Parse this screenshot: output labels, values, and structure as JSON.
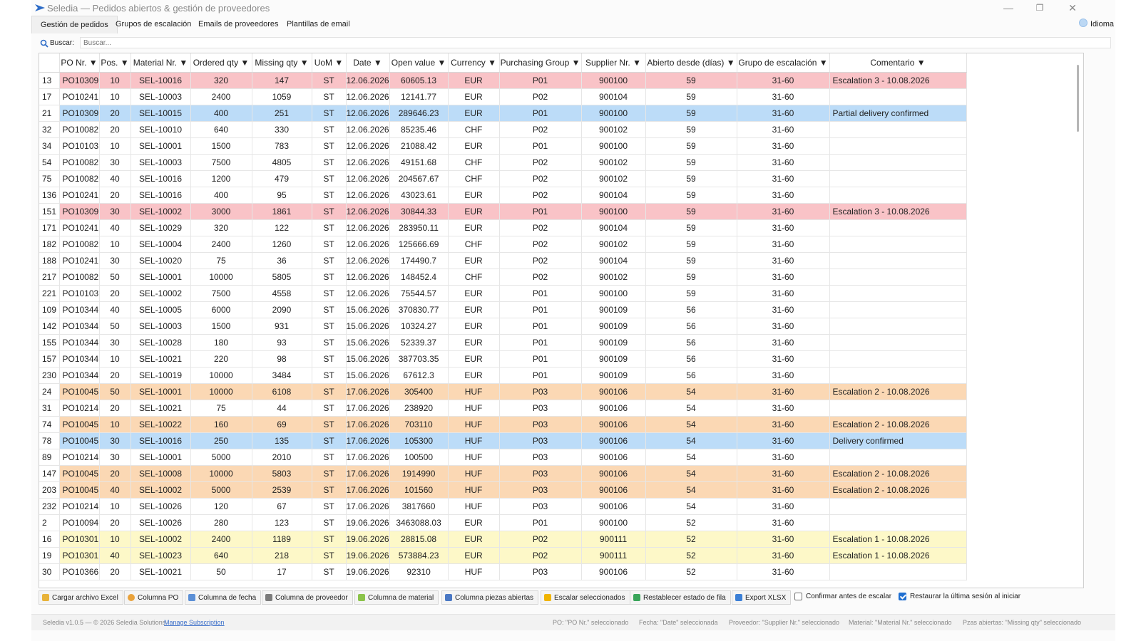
{
  "window": {
    "title": "Seledia — Pedidos abiertos & gestión de proveedores",
    "min_glyph": "—",
    "max_glyph": "❐",
    "close_glyph": "✕"
  },
  "tabs": [
    {
      "label": "Gestión de pedidos",
      "active": true
    },
    {
      "label": "Grupos de escalación",
      "active": false
    },
    {
      "label": "Emails de proveedores",
      "active": false
    },
    {
      "label": "Plantillas de email",
      "active": false
    }
  ],
  "language": {
    "label": "Idioma"
  },
  "search": {
    "label": "Buscar:",
    "placeholder": "Buscar..."
  },
  "table": {
    "columns": [
      "PO Nr. ▼",
      "Pos. ▼",
      "Material Nr. ▼",
      "Ordered qty ▼",
      "Missing qty ▼",
      "UoM ▼",
      "Date ▼",
      "Open value ▼",
      "Currency ▼",
      "Purchasing Group ▼",
      "Supplier Nr. ▼",
      "Abierto desde (días) ▼",
      "Grupo de escalación ▼",
      "Comentario ▼"
    ],
    "rows": [
      {
        "id": "13",
        "po": "PO10309",
        "pos": "10",
        "mat": "SEL-10016",
        "ord": "320",
        "miss": "147",
        "uom": "ST",
        "date": "12.06.2026",
        "val": "60605.13",
        "cur": "EUR",
        "pg": "P01",
        "sup": "900100",
        "days": "59",
        "grp": "31-60",
        "cmt": "Escalation 3 - 10.08.2026",
        "hl": "red"
      },
      {
        "id": "17",
        "po": "PO10241",
        "pos": "10",
        "mat": "SEL-10003",
        "ord": "2400",
        "miss": "1059",
        "uom": "ST",
        "date": "12.06.2026",
        "val": "12141.77",
        "cur": "EUR",
        "pg": "P02",
        "sup": "900104",
        "days": "59",
        "grp": "31-60",
        "cmt": "",
        "hl": ""
      },
      {
        "id": "21",
        "po": "PO10309",
        "pos": "20",
        "mat": "SEL-10015",
        "ord": "400",
        "miss": "251",
        "uom": "ST",
        "date": "12.06.2026",
        "val": "289646.23",
        "cur": "EUR",
        "pg": "P01",
        "sup": "900100",
        "days": "59",
        "grp": "31-60",
        "cmt": "Partial delivery confirmed",
        "hl": "blue"
      },
      {
        "id": "32",
        "po": "PO10082",
        "pos": "20",
        "mat": "SEL-10010",
        "ord": "640",
        "miss": "330",
        "uom": "ST",
        "date": "12.06.2026",
        "val": "85235.46",
        "cur": "CHF",
        "pg": "P02",
        "sup": "900102",
        "days": "59",
        "grp": "31-60",
        "cmt": "",
        "hl": ""
      },
      {
        "id": "34",
        "po": "PO10103",
        "pos": "10",
        "mat": "SEL-10001",
        "ord": "1500",
        "miss": "783",
        "uom": "ST",
        "date": "12.06.2026",
        "val": "21088.42",
        "cur": "EUR",
        "pg": "P01",
        "sup": "900100",
        "days": "59",
        "grp": "31-60",
        "cmt": "",
        "hl": ""
      },
      {
        "id": "54",
        "po": "PO10082",
        "pos": "30",
        "mat": "SEL-10003",
        "ord": "7500",
        "miss": "4805",
        "uom": "ST",
        "date": "12.06.2026",
        "val": "49151.68",
        "cur": "CHF",
        "pg": "P02",
        "sup": "900102",
        "days": "59",
        "grp": "31-60",
        "cmt": "",
        "hl": ""
      },
      {
        "id": "75",
        "po": "PO10082",
        "pos": "40",
        "mat": "SEL-10016",
        "ord": "1200",
        "miss": "479",
        "uom": "ST",
        "date": "12.06.2026",
        "val": "204567.67",
        "cur": "CHF",
        "pg": "P02",
        "sup": "900102",
        "days": "59",
        "grp": "31-60",
        "cmt": "",
        "hl": ""
      },
      {
        "id": "136",
        "po": "PO10241",
        "pos": "20",
        "mat": "SEL-10016",
        "ord": "400",
        "miss": "95",
        "uom": "ST",
        "date": "12.06.2026",
        "val": "43023.61",
        "cur": "EUR",
        "pg": "P02",
        "sup": "900104",
        "days": "59",
        "grp": "31-60",
        "cmt": "",
        "hl": ""
      },
      {
        "id": "151",
        "po": "PO10309",
        "pos": "30",
        "mat": "SEL-10002",
        "ord": "3000",
        "miss": "1861",
        "uom": "ST",
        "date": "12.06.2026",
        "val": "30844.33",
        "cur": "EUR",
        "pg": "P01",
        "sup": "900100",
        "days": "59",
        "grp": "31-60",
        "cmt": "Escalation 3 - 10.08.2026",
        "hl": "red"
      },
      {
        "id": "171",
        "po": "PO10241",
        "pos": "40",
        "mat": "SEL-10029",
        "ord": "320",
        "miss": "122",
        "uom": "ST",
        "date": "12.06.2026",
        "val": "283950.11",
        "cur": "EUR",
        "pg": "P02",
        "sup": "900104",
        "days": "59",
        "grp": "31-60",
        "cmt": "",
        "hl": ""
      },
      {
        "id": "182",
        "po": "PO10082",
        "pos": "10",
        "mat": "SEL-10004",
        "ord": "2400",
        "miss": "1260",
        "uom": "ST",
        "date": "12.06.2026",
        "val": "125666.69",
        "cur": "CHF",
        "pg": "P02",
        "sup": "900102",
        "days": "59",
        "grp": "31-60",
        "cmt": "",
        "hl": ""
      },
      {
        "id": "188",
        "po": "PO10241",
        "pos": "30",
        "mat": "SEL-10020",
        "ord": "75",
        "miss": "36",
        "uom": "ST",
        "date": "12.06.2026",
        "val": "174490.7",
        "cur": "EUR",
        "pg": "P02",
        "sup": "900104",
        "days": "59",
        "grp": "31-60",
        "cmt": "",
        "hl": ""
      },
      {
        "id": "217",
        "po": "PO10082",
        "pos": "50",
        "mat": "SEL-10001",
        "ord": "10000",
        "miss": "5805",
        "uom": "ST",
        "date": "12.06.2026",
        "val": "148452.4",
        "cur": "CHF",
        "pg": "P02",
        "sup": "900102",
        "days": "59",
        "grp": "31-60",
        "cmt": "",
        "hl": ""
      },
      {
        "id": "221",
        "po": "PO10103",
        "pos": "20",
        "mat": "SEL-10002",
        "ord": "7500",
        "miss": "4558",
        "uom": "ST",
        "date": "12.06.2026",
        "val": "75544.57",
        "cur": "EUR",
        "pg": "P01",
        "sup": "900100",
        "days": "59",
        "grp": "31-60",
        "cmt": "",
        "hl": ""
      },
      {
        "id": "109",
        "po": "PO10344",
        "pos": "40",
        "mat": "SEL-10005",
        "ord": "6000",
        "miss": "2090",
        "uom": "ST",
        "date": "15.06.2026",
        "val": "370830.77",
        "cur": "EUR",
        "pg": "P01",
        "sup": "900109",
        "days": "56",
        "grp": "31-60",
        "cmt": "",
        "hl": ""
      },
      {
        "id": "142",
        "po": "PO10344",
        "pos": "50",
        "mat": "SEL-10003",
        "ord": "1500",
        "miss": "931",
        "uom": "ST",
        "date": "15.06.2026",
        "val": "10324.27",
        "cur": "EUR",
        "pg": "P01",
        "sup": "900109",
        "days": "56",
        "grp": "31-60",
        "cmt": "",
        "hl": ""
      },
      {
        "id": "155",
        "po": "PO10344",
        "pos": "30",
        "mat": "SEL-10028",
        "ord": "180",
        "miss": "93",
        "uom": "ST",
        "date": "15.06.2026",
        "val": "52339.37",
        "cur": "EUR",
        "pg": "P01",
        "sup": "900109",
        "days": "56",
        "grp": "31-60",
        "cmt": "",
        "hl": ""
      },
      {
        "id": "157",
        "po": "PO10344",
        "pos": "10",
        "mat": "SEL-10021",
        "ord": "220",
        "miss": "98",
        "uom": "ST",
        "date": "15.06.2026",
        "val": "387703.35",
        "cur": "EUR",
        "pg": "P01",
        "sup": "900109",
        "days": "56",
        "grp": "31-60",
        "cmt": "",
        "hl": ""
      },
      {
        "id": "230",
        "po": "PO10344",
        "pos": "20",
        "mat": "SEL-10019",
        "ord": "10000",
        "miss": "3484",
        "uom": "ST",
        "date": "15.06.2026",
        "val": "67612.3",
        "cur": "EUR",
        "pg": "P01",
        "sup": "900109",
        "days": "56",
        "grp": "31-60",
        "cmt": "",
        "hl": ""
      },
      {
        "id": "24",
        "po": "PO10045",
        "pos": "50",
        "mat": "SEL-10001",
        "ord": "10000",
        "miss": "6108",
        "uom": "ST",
        "date": "17.06.2026",
        "val": "305400",
        "cur": "HUF",
        "pg": "P03",
        "sup": "900106",
        "days": "54",
        "grp": "31-60",
        "cmt": "Escalation 2 - 10.08.2026",
        "hl": "orange"
      },
      {
        "id": "31",
        "po": "PO10214",
        "pos": "20",
        "mat": "SEL-10021",
        "ord": "75",
        "miss": "44",
        "uom": "ST",
        "date": "17.06.2026",
        "val": "238920",
        "cur": "HUF",
        "pg": "P03",
        "sup": "900106",
        "days": "54",
        "grp": "31-60",
        "cmt": "",
        "hl": ""
      },
      {
        "id": "74",
        "po": "PO10045",
        "pos": "10",
        "mat": "SEL-10022",
        "ord": "160",
        "miss": "69",
        "uom": "ST",
        "date": "17.06.2026",
        "val": "703110",
        "cur": "HUF",
        "pg": "P03",
        "sup": "900106",
        "days": "54",
        "grp": "31-60",
        "cmt": "Escalation 2 - 10.08.2026",
        "hl": "orange"
      },
      {
        "id": "78",
        "po": "PO10045",
        "pos": "30",
        "mat": "SEL-10016",
        "ord": "250",
        "miss": "135",
        "uom": "ST",
        "date": "17.06.2026",
        "val": "105300",
        "cur": "HUF",
        "pg": "P03",
        "sup": "900106",
        "days": "54",
        "grp": "31-60",
        "cmt": "Delivery confirmed",
        "hl": "blue"
      },
      {
        "id": "89",
        "po": "PO10214",
        "pos": "30",
        "mat": "SEL-10001",
        "ord": "5000",
        "miss": "2010",
        "uom": "ST",
        "date": "17.06.2026",
        "val": "100500",
        "cur": "HUF",
        "pg": "P03",
        "sup": "900106",
        "days": "54",
        "grp": "31-60",
        "cmt": "",
        "hl": ""
      },
      {
        "id": "147",
        "po": "PO10045",
        "pos": "20",
        "mat": "SEL-10008",
        "ord": "10000",
        "miss": "5803",
        "uom": "ST",
        "date": "17.06.2026",
        "val": "1914990",
        "cur": "HUF",
        "pg": "P03",
        "sup": "900106",
        "days": "54",
        "grp": "31-60",
        "cmt": "Escalation 2 - 10.08.2026",
        "hl": "orange"
      },
      {
        "id": "203",
        "po": "PO10045",
        "pos": "40",
        "mat": "SEL-10002",
        "ord": "5000",
        "miss": "2539",
        "uom": "ST",
        "date": "17.06.2026",
        "val": "101560",
        "cur": "HUF",
        "pg": "P03",
        "sup": "900106",
        "days": "54",
        "grp": "31-60",
        "cmt": "Escalation 2 - 10.08.2026",
        "hl": "orange"
      },
      {
        "id": "232",
        "po": "PO10214",
        "pos": "10",
        "mat": "SEL-10026",
        "ord": "120",
        "miss": "67",
        "uom": "ST",
        "date": "17.06.2026",
        "val": "3817660",
        "cur": "HUF",
        "pg": "P03",
        "sup": "900106",
        "days": "54",
        "grp": "31-60",
        "cmt": "",
        "hl": ""
      },
      {
        "id": "2",
        "po": "PO10094",
        "pos": "20",
        "mat": "SEL-10026",
        "ord": "280",
        "miss": "123",
        "uom": "ST",
        "date": "19.06.2026",
        "val": "3463088.03",
        "cur": "EUR",
        "pg": "P01",
        "sup": "900100",
        "days": "52",
        "grp": "31-60",
        "cmt": "",
        "hl": ""
      },
      {
        "id": "16",
        "po": "PO10301",
        "pos": "10",
        "mat": "SEL-10002",
        "ord": "2400",
        "miss": "1189",
        "uom": "ST",
        "date": "19.06.2026",
        "val": "28815.08",
        "cur": "EUR",
        "pg": "P02",
        "sup": "900111",
        "days": "52",
        "grp": "31-60",
        "cmt": "Escalation 1 - 10.08.2026",
        "hl": "yellow"
      },
      {
        "id": "19",
        "po": "PO10301",
        "pos": "40",
        "mat": "SEL-10023",
        "ord": "640",
        "miss": "218",
        "uom": "ST",
        "date": "19.06.2026",
        "val": "573884.23",
        "cur": "EUR",
        "pg": "P02",
        "sup": "900111",
        "days": "52",
        "grp": "31-60",
        "cmt": "Escalation 1 - 10.08.2026",
        "hl": "yellow"
      },
      {
        "id": "30",
        "po": "PO10366",
        "pos": "20",
        "mat": "SEL-10021",
        "ord": "50",
        "miss": "17",
        "uom": "ST",
        "date": "19.06.2026",
        "val": "92310",
        "cur": "HUF",
        "pg": "P03",
        "sup": "900106",
        "days": "52",
        "grp": "31-60",
        "cmt": "",
        "hl": ""
      }
    ]
  },
  "toolbar": {
    "buttons": [
      {
        "label": "Cargar archivo Excel",
        "icon": "folder-icon",
        "color": "#e8b33a"
      },
      {
        "label": "Columna PO",
        "icon": "circle-icon",
        "color": "#e9a23b"
      },
      {
        "label": "Columna de fecha",
        "icon": "calendar-icon",
        "color": "#5b8fd6"
      },
      {
        "label": "Columna de proveedor",
        "icon": "factory-icon",
        "color": "#7b7b7b"
      },
      {
        "label": "Columna de material",
        "icon": "material-icon",
        "color": "#8bc34a"
      },
      {
        "label": "Columna piezas abiertas",
        "icon": "chart-icon",
        "color": "#4a78c4"
      },
      {
        "label": "Escalar seleccionados",
        "icon": "warning-icon",
        "color": "#f0b400"
      },
      {
        "label": "Restablecer estado de fila",
        "icon": "recycle-icon",
        "color": "#3aa55a"
      },
      {
        "label": "Export XLSX",
        "icon": "export-icon",
        "color": "#3b7fd6"
      }
    ],
    "checkboxes": [
      {
        "label": "Confirmar antes de escalar",
        "checked": false
      },
      {
        "label": "Restaurar la última sesión al iniciar",
        "checked": true
      }
    ]
  },
  "status": {
    "version": "Seledia v1.0.5 — © 2026 Seledia Solutions",
    "link": "Manage Subscription",
    "po_sel": "PO: \"PO Nr.\" seleccionado",
    "date_sel": "Fecha: \"Date\" seleccionada",
    "supplier_sel": "Proveedor: \"Supplier Nr.\" seleccionado",
    "material_sel": "Material: \"Material Nr.\" seleccionado",
    "pieces_sel": "Pzas abiertas: \"Missing qty\" seleccionado"
  }
}
